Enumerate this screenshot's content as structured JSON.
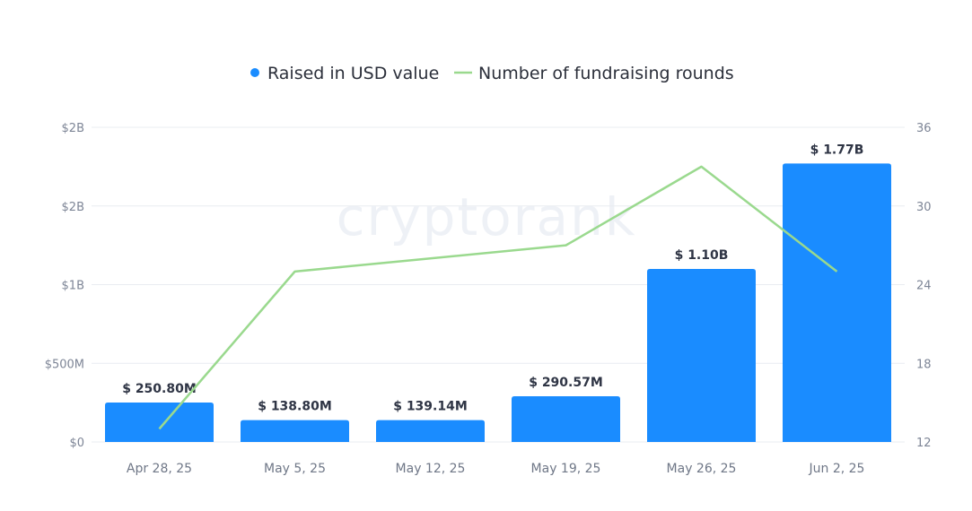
{
  "watermark": "cryptorank",
  "chart_data": {
    "type": "bar",
    "categories": [
      "Apr 28, 25",
      "May 5, 25",
      "May 12, 25",
      "May 19, 25",
      "May 26, 25",
      "Jun 2, 25"
    ],
    "series": [
      {
        "name": "Raised in USD value",
        "type": "bar",
        "axis": "left",
        "values": [
          250800000,
          138800000,
          139140000,
          290570000,
          1100000000,
          1770000000
        ],
        "labels": [
          "$ 250.80M",
          "$ 138.80M",
          "$ 139.14M",
          "$ 290.57M",
          "$ 1.10B",
          "$ 1.77B"
        ],
        "color": "#1a8cff"
      },
      {
        "name": "Number of fundraising rounds",
        "type": "line",
        "axis": "right",
        "values": [
          13,
          25,
          26,
          27,
          33,
          25
        ],
        "color": "#9ad98e"
      }
    ],
    "y_left": {
      "ticks": [
        0,
        500000000,
        1000000000,
        1500000000,
        2000000000
      ],
      "tick_labels": [
        "$0",
        "$500M",
        "$1B",
        "$2B",
        "$2B"
      ],
      "range": [
        0,
        2000000000
      ]
    },
    "y_right": {
      "ticks": [
        12,
        18,
        24,
        30,
        36
      ],
      "tick_labels": [
        "12",
        "18",
        "24",
        "30",
        "36"
      ],
      "range": [
        12,
        36
      ]
    },
    "legend": "top-center",
    "grid": true
  }
}
